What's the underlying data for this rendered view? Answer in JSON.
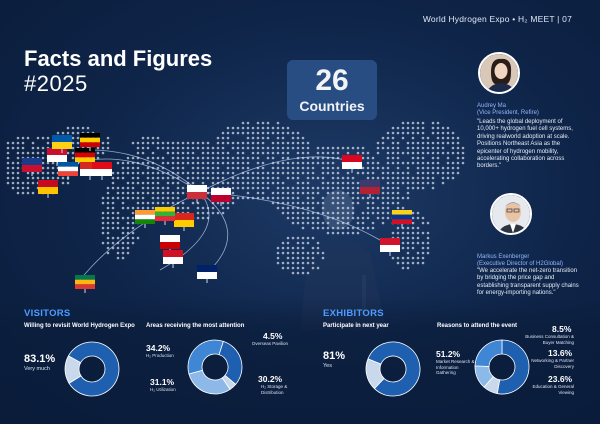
{
  "header": {
    "text": "World Hydrogen Expo • H₂ MEET | 07"
  },
  "title": "Facts and Figures",
  "subtitle": "#2025",
  "countries": {
    "number": "26",
    "label": "Countries"
  },
  "speakers": [
    {
      "name": "Audrey Ma",
      "role": "(Vice President, Refire)",
      "quote": "\"Leads the global deployment of 10,000+ hydrogen fuel cell systems, driving realworld adoption at scale. Positions Northeast Asia as the epicenter of hydrogen mobility, accelerating collaboration across borders.\""
    },
    {
      "name": "Markus Exenberger",
      "role": "(Executive Director of H2Global)",
      "quote": "\"We accelerate the net-zero transition by bridging the price gap and establishing transparent supply chains for energy-importing nations.\""
    }
  ],
  "visitors": {
    "section_title": "VISITORS",
    "revisit": {
      "title": "Willing to revisit World Hydrogen Expo",
      "pct": "83.1%",
      "label": "Very much"
    },
    "areas": {
      "title": "Areas receiving the most attention",
      "items": [
        {
          "pct": "34.2%",
          "label": "H₂ Production"
        },
        {
          "pct": "31.1%",
          "label": "H₂ Utilization"
        },
        {
          "pct": "4.5%",
          "label": "Overseas Pavilion"
        },
        {
          "pct": "30.2%",
          "label": "H₂ Storage & Distribution"
        }
      ]
    }
  },
  "exhibitors": {
    "section_title": "EXHIBITORS",
    "participate": {
      "title": "Participate in next year",
      "pct": "81%",
      "label": "Yes"
    },
    "reasons": {
      "title": "Reasons to attend the event",
      "items": [
        {
          "pct": "51.2%",
          "label": "Market Research & Information Gathering"
        },
        {
          "pct": "8.5%",
          "label": "Business Consultation & Buyer Matching"
        },
        {
          "pct": "13.6%",
          "label": "Networking & Partner Discovery"
        },
        {
          "pct": "23.6%",
          "label": "Education & General Viewing"
        }
      ]
    }
  },
  "chart_data": [
    {
      "type": "pie",
      "title": "Willing to revisit World Hydrogen Expo",
      "labels": [
        "Very much",
        ""
      ],
      "values": [
        83.1,
        16.9
      ]
    },
    {
      "type": "pie",
      "title": "Areas receiving the most attention",
      "labels": [
        "H₂ Production",
        "H₂ Utilization",
        "Overseas Pavilion",
        "H₂ Storage & Distribution"
      ],
      "values": [
        34.2,
        31.1,
        4.5,
        30.2
      ]
    },
    {
      "type": "pie",
      "title": "Participate in next year",
      "labels": [
        "Yes",
        ""
      ],
      "values": [
        81,
        19
      ]
    },
    {
      "type": "pie",
      "title": "Reasons to attend the event",
      "labels": [
        "Market Research & Information Gathering",
        "Business Consultation & Buyer Matching",
        "Networking & Partner Discovery",
        "Education & General Viewing"
      ],
      "values": [
        51.2,
        8.5,
        13.6,
        23.6
      ]
    }
  ],
  "colors": {
    "background": "#0b1e3d",
    "accent": "#4f9bff",
    "donut_dark": "#1f5fb0",
    "donut_mid": "#3f86d4",
    "donut_light": "#8db9e8",
    "donut_pale": "#c9d8ea"
  }
}
